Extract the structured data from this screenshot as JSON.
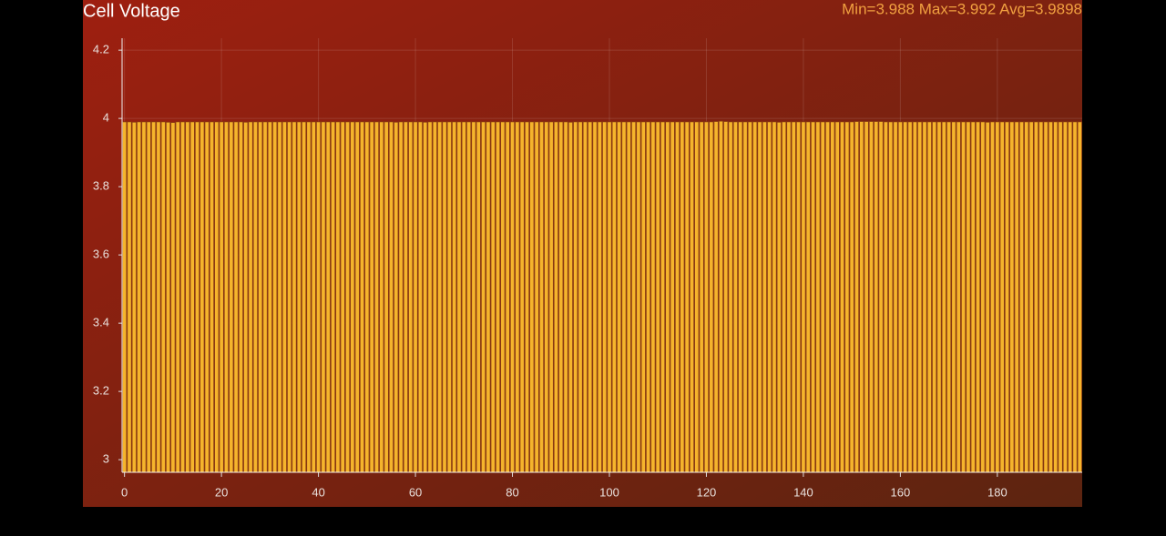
{
  "chart_data": {
    "type": "bar",
    "title": "Cell Voltage",
    "annotation": "Min=3.988 Max=3.992 Avg=3.9898",
    "color": "#f5b42c",
    "x": [
      0,
      1,
      2,
      3,
      4,
      5,
      6,
      7,
      8,
      9,
      10,
      11,
      12,
      13,
      14,
      15,
      16,
      17,
      18,
      19,
      20,
      21,
      22,
      23,
      24,
      25,
      26,
      27,
      28,
      29,
      30,
      31,
      32,
      33,
      34,
      35,
      36,
      37,
      38,
      39,
      40,
      41,
      42,
      43,
      44,
      45,
      46,
      47,
      48,
      49,
      50,
      51,
      52,
      53,
      54,
      55,
      56,
      57,
      58,
      59,
      60,
      61,
      62,
      63,
      64,
      65,
      66,
      67,
      68,
      69,
      70,
      71,
      72,
      73,
      74,
      75,
      76,
      77,
      78,
      79,
      80,
      81,
      82,
      83,
      84,
      85,
      86,
      87,
      88,
      89,
      90,
      91,
      92,
      93,
      94,
      95,
      96,
      97,
      98,
      99,
      100,
      101,
      102,
      103,
      104,
      105,
      106,
      107,
      108,
      109,
      110,
      111,
      112,
      113,
      114,
      115,
      116,
      117,
      118,
      119,
      120,
      121,
      122,
      123,
      124,
      125,
      126,
      127,
      128,
      129,
      130,
      131,
      132,
      133,
      134,
      135,
      136,
      137,
      138,
      139,
      140,
      141,
      142,
      143,
      144,
      145,
      146,
      147,
      148,
      149,
      150,
      151,
      152,
      153,
      154,
      155,
      156,
      157,
      158,
      159,
      160,
      161,
      162,
      163,
      164,
      165,
      166,
      167,
      168,
      169,
      170,
      171,
      172,
      173,
      174,
      175,
      176,
      177,
      178,
      179,
      180,
      181,
      182,
      183,
      184,
      185,
      186,
      187,
      188,
      189,
      190,
      191,
      192,
      193,
      194,
      195,
      196,
      197
    ],
    "values": [
      3.99,
      3.99,
      3.989,
      3.99,
      3.99,
      3.99,
      3.99,
      3.99,
      3.99,
      3.989,
      3.988,
      3.99,
      3.99,
      3.99,
      3.99,
      3.99,
      3.99,
      3.99,
      3.99,
      3.99,
      3.99,
      3.99,
      3.99,
      3.99,
      3.99,
      3.989,
      3.99,
      3.99,
      3.99,
      3.99,
      3.99,
      3.99,
      3.99,
      3.99,
      3.99,
      3.99,
      3.99,
      3.99,
      3.99,
      3.99,
      3.99,
      3.99,
      3.99,
      3.99,
      3.99,
      3.99,
      3.99,
      3.99,
      3.99,
      3.99,
      3.99,
      3.99,
      3.99,
      3.99,
      3.99,
      3.99,
      3.989,
      3.99,
      3.99,
      3.99,
      3.99,
      3.99,
      3.989,
      3.99,
      3.99,
      3.99,
      3.99,
      3.99,
      3.99,
      3.99,
      3.99,
      3.99,
      3.99,
      3.99,
      3.99,
      3.99,
      3.99,
      3.99,
      3.99,
      3.99,
      3.99,
      3.99,
      3.99,
      3.99,
      3.99,
      3.99,
      3.99,
      3.99,
      3.99,
      3.99,
      3.99,
      3.99,
      3.989,
      3.99,
      3.99,
      3.99,
      3.99,
      3.99,
      3.99,
      3.99,
      3.99,
      3.99,
      3.99,
      3.99,
      3.99,
      3.99,
      3.99,
      3.99,
      3.99,
      3.99,
      3.99,
      3.99,
      3.99,
      3.99,
      3.99,
      3.99,
      3.99,
      3.99,
      3.99,
      3.99,
      3.99,
      3.99,
      3.991,
      3.992,
      3.991,
      3.99,
      3.99,
      3.99,
      3.99,
      3.99,
      3.99,
      3.99,
      3.99,
      3.99,
      3.99,
      3.989,
      3.99,
      3.99,
      3.99,
      3.99,
      3.99,
      3.99,
      3.99,
      3.99,
      3.99,
      3.99,
      3.99,
      3.99,
      3.99,
      3.99,
      3.99,
      3.991,
      3.991,
      3.991,
      3.991,
      3.991,
      3.991,
      3.99,
      3.99,
      3.99,
      3.99,
      3.99,
      3.99,
      3.99,
      3.99,
      3.99,
      3.99,
      3.99,
      3.99,
      3.99,
      3.99,
      3.99,
      3.99,
      3.99,
      3.99,
      3.99,
      3.99,
      3.99,
      3.989,
      3.99,
      3.99,
      3.99,
      3.99,
      3.99,
      3.99,
      3.99,
      3.99,
      3.99,
      3.99,
      3.99,
      3.99,
      3.99,
      3.99,
      3.99,
      3.99,
      3.99,
      3.99,
      3.99
    ],
    "xlim": [
      -0.5,
      197.5
    ],
    "xticks": [
      0,
      20,
      40,
      60,
      80,
      100,
      120,
      140,
      160,
      180
    ],
    "ylim": [
      2.963,
      4.235
    ],
    "yticks": [
      3,
      3.2,
      3.4,
      3.6,
      3.8,
      4,
      4.2
    ],
    "grid": true
  }
}
